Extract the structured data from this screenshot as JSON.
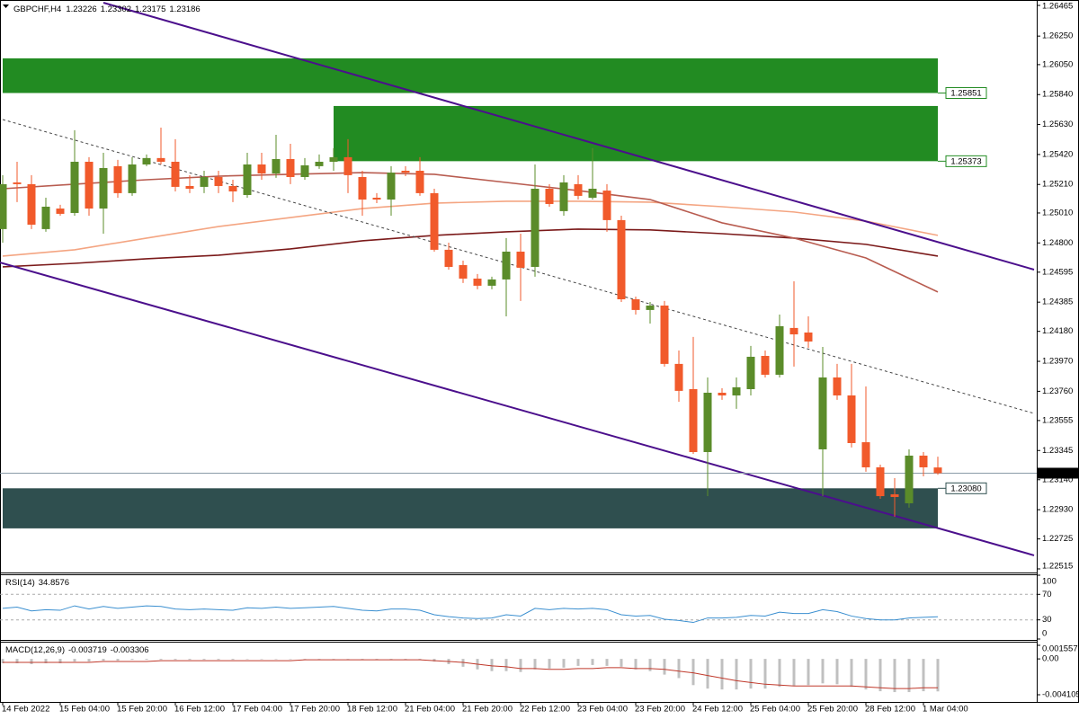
{
  "chart_data": [
    {
      "type": "candlestick",
      "title": "GBPCHF,H4",
      "categories": [
        "14 Feb 2022",
        null,
        null,
        null,
        "15 Feb 04:00",
        null,
        null,
        null,
        "15 Feb 20:00",
        null,
        null,
        null,
        "16 Feb 12:00",
        null,
        null,
        null,
        "17 Feb 04:00",
        null,
        null,
        null,
        "17 Feb 20:00",
        null,
        null,
        null,
        "18 Feb 12:00",
        null,
        null,
        null,
        "21 Feb 04:00",
        null,
        null,
        null,
        "21 Feb 20:00",
        null,
        null,
        null,
        "22 Feb 12:00",
        null,
        null,
        null,
        "23 Feb 04:00",
        null,
        null,
        null,
        "23 Feb 20:00",
        null,
        null,
        null,
        "24 Feb 12:00",
        null,
        null,
        null,
        "25 Feb 04:00",
        null,
        null,
        null,
        "25 Feb 20:00",
        null,
        null,
        null,
        "28 Feb 12:00",
        null,
        null,
        null,
        "1 Mar 04:00",
        null
      ],
      "open": [
        1.24897,
        1.25224,
        1.25212,
        1.24897,
        1.25041,
        1.2501,
        1.25369,
        1.25041,
        1.25338,
        1.25149,
        1.2535,
        1.25395,
        1.25369,
        1.25199,
        1.25193,
        1.25262,
        1.25199,
        1.25136,
        1.2535,
        1.25287,
        1.25388,
        1.25262,
        1.25338,
        1.25369,
        1.25401,
        1.25262,
        1.25117,
        1.25104,
        1.25306,
        1.25306,
        1.25149,
        1.24752,
        1.24645,
        1.2455,
        1.245,
        1.24544,
        1.24739,
        1.24632,
        1.2518,
        1.25023,
        1.25212,
        1.25117,
        1.25167,
        1.2496,
        1.24405,
        1.2433,
        1.24361,
        1.23952,
        1.23775,
        1.23334,
        1.2375,
        1.23731,
        1.23775,
        1.24008,
        1.23876,
        1.24204,
        1.24172,
        1.23353,
        1.23857,
        1.23731,
        1.23403,
        1.23227,
        1.23038,
        1.22975,
        1.23309,
        1.23226
      ],
      "high": [
        1.25275,
        1.25369,
        1.25275,
        1.25117,
        1.25067,
        1.2559,
        1.25401,
        1.25432,
        1.25382,
        1.25401,
        1.2542,
        1.25608,
        1.25527,
        1.25275,
        1.25306,
        1.25306,
        1.25243,
        1.25432,
        1.25432,
        1.25558,
        1.25495,
        1.25395,
        1.2542,
        1.25464,
        1.25527,
        1.25306,
        1.25149,
        1.25338,
        1.25338,
        1.25401,
        1.2518,
        1.24802,
        1.24676,
        1.24582,
        1.24563,
        1.24834,
        1.24865,
        1.2535,
        1.25212,
        1.25275,
        1.25275,
        1.25464,
        1.25212,
        1.24991,
        1.24424,
        1.24386,
        1.24393,
        1.24046,
        1.24141,
        1.23857,
        1.23781,
        1.23857,
        1.24078,
        1.24046,
        1.24298,
        1.24531,
        1.24285,
        1.24071,
        1.23952,
        1.23952,
        1.23794,
        1.23246,
        1.23151,
        1.23353,
        1.23334,
        1.23302
      ],
      "low": [
        1.24802,
        1.25086,
        1.24897,
        1.24878,
        1.24991,
        1.24991,
        1.24991,
        1.24865,
        1.25117,
        1.2513,
        1.25338,
        1.2535,
        1.25161,
        1.25149,
        1.25149,
        1.25149,
        1.25086,
        1.25117,
        1.25243,
        1.25256,
        1.25212,
        1.25243,
        1.25319,
        1.25306,
        1.25149,
        1.24991,
        1.25079,
        1.24991,
        1.25268,
        1.2513,
        1.24739,
        1.24613,
        1.24519,
        1.24475,
        1.24475,
        1.24285,
        1.24393,
        1.24563,
        1.25054,
        1.24991,
        1.25104,
        1.25104,
        1.24878,
        1.24386,
        1.24298,
        1.24235,
        1.23933,
        1.23687,
        1.23321,
        1.23025,
        1.237,
        1.23637,
        1.23731,
        1.23857,
        1.23857,
        1.23933,
        1.24065,
        1.23025,
        1.237,
        1.23366,
        1.23196,
        1.23006,
        1.22881,
        1.22944,
        1.23164,
        1.23175
      ],
      "close": [
        1.25212,
        1.25212,
        1.24928,
        1.25054,
        1.25004,
        1.25369,
        1.25041,
        1.25325,
        1.25149,
        1.2535,
        1.25395,
        1.25369,
        1.25193,
        1.2518,
        1.25262,
        1.25199,
        1.25161,
        1.2535,
        1.25287,
        1.25388,
        1.25262,
        1.25344,
        1.25369,
        1.25401,
        1.25275,
        1.25104,
        1.25104,
        1.25293,
        1.25293,
        1.25149,
        1.24752,
        1.24632,
        1.2455,
        1.245,
        1.24544,
        1.24739,
        1.24626,
        1.2518,
        1.25073,
        1.25224,
        1.2513,
        1.2518,
        1.2496,
        1.24405,
        1.2433,
        1.24361,
        1.23952,
        1.23763,
        1.23334,
        1.2375,
        1.23731,
        1.23788,
        1.24002,
        1.23876,
        1.24216,
        1.24159,
        1.24109,
        1.23857,
        1.23731,
        1.23397,
        1.23227,
        1.23025,
        1.23019,
        1.23309,
        1.23227,
        1.23186
      ],
      "up_color": "#5b8c2a",
      "down_color": "#f15a2b",
      "xlim": [
        -0.1875,
        71.875
      ],
      "ylim": [
        1.22496,
        1.26503
      ],
      "yticks": [
        1.26465,
        {
          "value": 1.2625,
          "label": "1.26250"
        },
        {
          "value": 1.2605,
          "label": "1.26050"
        },
        {
          "value": 1.2584,
          "label": "1.25840"
        },
        {
          "value": 1.2563,
          "label": "1.25630"
        },
        {
          "value": 1.2542,
          "label": "1.25420"
        },
        {
          "value": 1.2521,
          "label": "1.25210"
        },
        {
          "value": 1.2501,
          "label": "1.25010"
        },
        {
          "value": 1.248,
          "label": "1.24800"
        },
        1.24595,
        1.24385,
        {
          "value": 1.2418,
          "label": "1.24180"
        },
        {
          "value": 1.2397,
          "label": "1.23970"
        },
        {
          "value": 1.2376,
          "label": "1.23760"
        },
        1.23555,
        1.23345,
        {
          "value": 1.2314,
          "label": "1.23140"
        },
        {
          "value": 1.2293,
          "label": "1.22930"
        },
        1.22725,
        1.22515
      ],
      "zones": [
        {
          "top": 1.26094,
          "bottom": 1.25851,
          "start": 0,
          "end": 65,
          "color": "#228b22",
          "labeled_edge": "bottom",
          "label": "1.25851"
        },
        {
          "top": 1.2576,
          "bottom": 1.25373,
          "start": 23,
          "end": 65,
          "color": "#228b22",
          "labeled_edge": "bottom",
          "label": "1.25373"
        },
        {
          "top": 1.2308,
          "bottom": 1.22799,
          "start": 0,
          "end": 65,
          "color": "#2f4f4f",
          "labeled_edge": "top",
          "label": "1.23080"
        }
      ],
      "overlays": [
        {
          "x": [
            0,
            5,
            10,
            15,
            20,
            25,
            30,
            35,
            40,
            45,
            50,
            55,
            60,
            65
          ],
          "values": [
            1.24708,
            1.24752,
            1.24834,
            1.24915,
            1.24978,
            1.25041,
            1.25079,
            1.25092,
            1.25092,
            1.25086,
            1.25054,
            1.25017,
            1.24953,
            1.24853
          ],
          "color": "#f4a582"
        },
        {
          "x": [
            0,
            5,
            10,
            15,
            20,
            25,
            30,
            35,
            40,
            45,
            50,
            55,
            60,
            65
          ],
          "values": [
            1.24632,
            1.24657,
            1.24689,
            1.24714,
            1.24758,
            1.24815,
            1.24853,
            1.24878,
            1.24897,
            1.24891,
            1.24865,
            1.24834,
            1.2479,
            1.24708
          ],
          "color": "#7b1a1a"
        },
        {
          "x": [
            0,
            5,
            10,
            15,
            20,
            25,
            30,
            35,
            40,
            45,
            50,
            55,
            60,
            65
          ],
          "values": [
            1.2518,
            1.25212,
            1.25243,
            1.25268,
            1.25281,
            1.25293,
            1.25281,
            1.25224,
            1.25167,
            1.25104,
            1.24941,
            1.24834,
            1.24695,
            1.24456
          ],
          "color": "#b85c50"
        }
      ],
      "trendlines": [
        {
          "x": [
            7,
            71.6875
          ],
          "values": [
            1.26484,
            1.24613
          ],
          "color": "#4b0f8c",
          "style": "solid"
        },
        {
          "x": [
            -0.1875,
            71.6875
          ],
          "values": [
            1.24663,
            1.2261
          ],
          "color": "#4b0f8c",
          "style": "solid"
        },
        {
          "x": [
            0,
            71.6875
          ],
          "values": [
            1.25665,
            1.23605
          ],
          "color": "#444444",
          "style": "dashed"
        }
      ]
    },
    {
      "type": "line",
      "title": "RSI(14)",
      "values": [
        48,
        50,
        44,
        46,
        45,
        52,
        47,
        51,
        48,
        50,
        52,
        51,
        47,
        46,
        47,
        46,
        45,
        49,
        48,
        50,
        48,
        49,
        50,
        51,
        48,
        45,
        44,
        47,
        47,
        45,
        38,
        35,
        33,
        32,
        33,
        38,
        36,
        48,
        46,
        48,
        47,
        48,
        46,
        38,
        36,
        37,
        31,
        29,
        26,
        33,
        33,
        34,
        37,
        36,
        42,
        40,
        40,
        46,
        43,
        36,
        32,
        30,
        30,
        33,
        34,
        34.8576
      ],
      "color": "#3a8fd0",
      "ylim": [
        0,
        100
      ],
      "yticks": [
        100,
        70,
        30,
        0
      ]
    },
    {
      "type": "macd",
      "title": "MACD(12,26,9)",
      "series": [
        {
          "values": [
            -0.0005,
            -0.0005,
            -0.0006,
            -0.0005,
            -0.0005,
            -0.0003,
            -0.0003,
            -0.0002,
            -0.0002,
            -0.0001,
            -0.0001,
            -0.0001,
            -0.0001,
            -0.0001,
            -0.0001,
            -0.0001,
            -0.0001,
            0,
            0,
            0,
            0,
            0,
            0,
            0,
            0,
            -0.0001,
            -0.0001,
            -0.0001,
            -0.0001,
            -0.0001,
            -0.0003,
            -0.0006,
            -0.0009,
            -0.0012,
            -0.0014,
            -0.0014,
            -0.0015,
            -0.0012,
            -0.0011,
            -0.001,
            -0.0008,
            -0.0007,
            -0.0008,
            -0.0009,
            -0.0012,
            -0.0014,
            -0.0018,
            -0.0022,
            -0.003,
            -0.0034,
            -0.0035,
            -0.0035,
            -0.0034,
            -0.0034,
            -0.0032,
            -0.0031,
            -0.003,
            -0.0028,
            -0.0029,
            -0.0032,
            -0.0035,
            -0.0037,
            -0.0038,
            -0.0038,
            -0.0037,
            -0.003719
          ],
          "color": "#c0c0c0"
        },
        {
          "values": [
            -0.0004,
            -0.0004,
            -0.0004,
            -0.0004,
            -0.0004,
            -0.0004,
            -0.0004,
            -0.0003,
            -0.0003,
            -0.0003,
            -0.0003,
            -0.0002,
            -0.0002,
            -0.0002,
            -0.0002,
            -0.0002,
            -0.0002,
            -0.0002,
            -0.0002,
            -0.0002,
            -0.0002,
            -0.0001,
            -0.0001,
            -0.0001,
            -0.0001,
            -0.0001,
            -0.0001,
            -0.0001,
            -0.0001,
            -0.0001,
            -0.0002,
            -0.0003,
            -0.0004,
            -0.0006,
            -0.0008,
            -0.0009,
            -0.0011,
            -0.0011,
            -0.0012,
            -0.0012,
            -0.0011,
            -0.0011,
            -0.001,
            -0.001,
            -0.0011,
            -0.0011,
            -0.0012,
            -0.0014,
            -0.0016,
            -0.0019,
            -0.0022,
            -0.0025,
            -0.0027,
            -0.0029,
            -0.003,
            -0.0031,
            -0.0031,
            -0.0031,
            -0.0031,
            -0.0031,
            -0.0032,
            -0.0033,
            -0.0034,
            -0.0034,
            -0.0033,
            -0.003306
          ],
          "color": "#c0392b"
        }
      ],
      "ylim": [
        -0.004823,
        0.001865
      ],
      "yticks": [
        0.001557,
        {
          "value": 0,
          "label": "0.00"
        },
        -0.004105
      ]
    }
  ]
}
